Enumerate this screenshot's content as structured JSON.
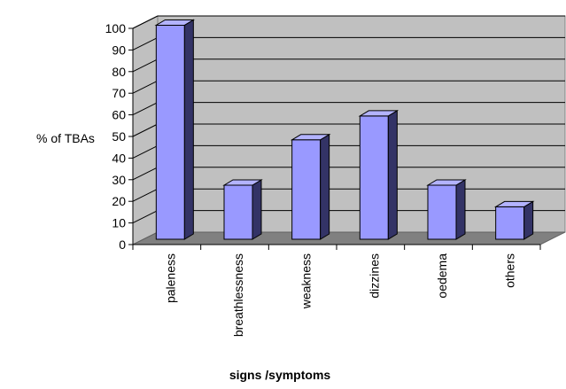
{
  "chart_data": {
    "type": "bar",
    "style": "3d-column",
    "categories": [
      "paleness",
      "breathlessness",
      "weakness",
      "dizzines",
      "oedema",
      "others"
    ],
    "values": [
      99,
      25,
      46,
      57,
      25,
      15
    ],
    "ylabel": "% of TBAs",
    "xlabel": "signs /symptoms",
    "ylim": [
      0,
      100
    ],
    "ytick_step": 10,
    "yticks": [
      "0",
      "10",
      "20",
      "30",
      "40",
      "50",
      "60",
      "70",
      "80",
      "90",
      "100"
    ],
    "grid": true,
    "legend": "none",
    "colors": {
      "bar_front": "#9999ff",
      "bar_side": "#333366",
      "bar_top": "#b3b3ff",
      "back_wall": "#c0c0c0",
      "floor": "#808080",
      "side_wall": "#c0c0c0"
    }
  }
}
